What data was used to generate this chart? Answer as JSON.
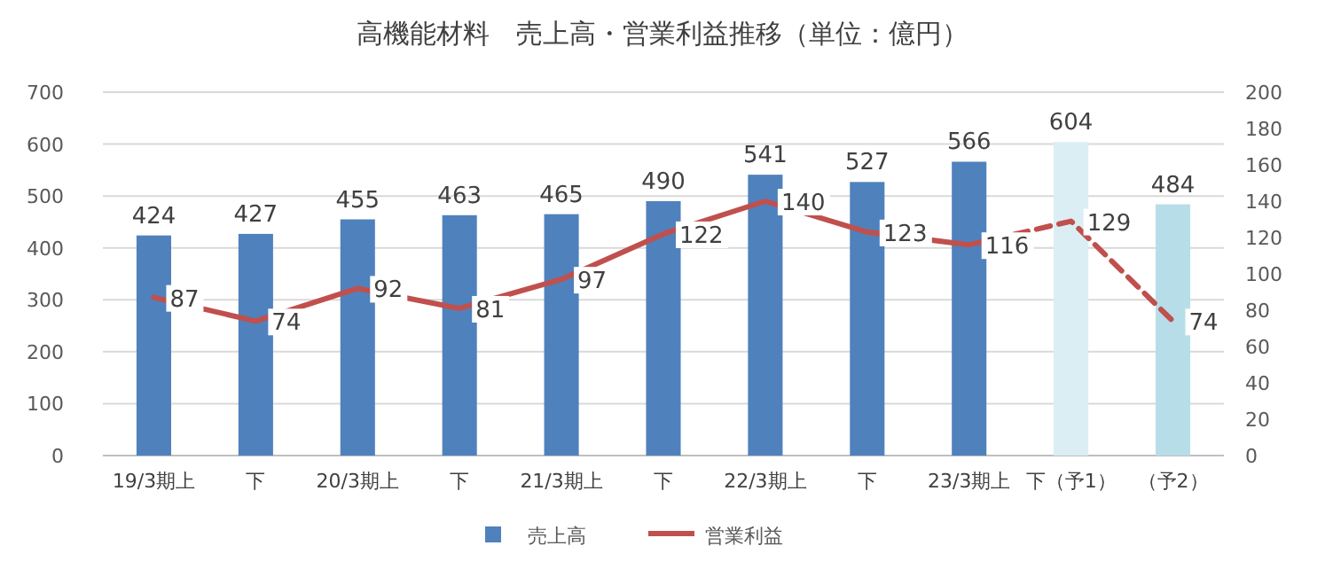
{
  "chart_data": {
    "type": "bar",
    "title": "高機能材料　売上高・営業利益推移（単位：億円）",
    "categories": [
      "19/3期上",
      "下",
      "20/3期上",
      "下",
      "21/3期上",
      "下",
      "22/3期上",
      "下",
      "23/3期上",
      "下（予1）",
      "（予2）"
    ],
    "series": [
      {
        "name": "売上高",
        "color": "#4f81bd",
        "colors": [
          "#4f81bd",
          "#4f81bd",
          "#4f81bd",
          "#4f81bd",
          "#4f81bd",
          "#4f81bd",
          "#4f81bd",
          "#4f81bd",
          "#4f81bd",
          "#dbeef4",
          "#b7dee8"
        ],
        "values": [
          424,
          427,
          455,
          463,
          465,
          490,
          541,
          527,
          566,
          604,
          484
        ],
        "value_labels": [
          "424",
          "427",
          "455",
          "463",
          "465",
          "490",
          "541",
          "527",
          "566",
          "604",
          "484"
        ]
      },
      {
        "name": "営業利益",
        "type": "line",
        "axis": "y2",
        "color": "#c0504d",
        "line_style": "solid",
        "values": [
          87,
          74,
          92,
          81,
          97,
          122,
          140,
          123,
          116,
          null,
          null
        ],
        "value_labels": [
          "87",
          "74",
          "92",
          "81",
          "97",
          "122",
          "140",
          "123",
          "116",
          null,
          null
        ]
      },
      {
        "type": "line",
        "axis": "y2",
        "color": "#c0504d",
        "line_style": "dashed",
        "values": [
          null,
          null,
          null,
          null,
          null,
          null,
          null,
          null,
          116,
          129,
          74
        ],
        "value_labels": [
          null,
          null,
          null,
          null,
          null,
          null,
          null,
          null,
          null,
          "129",
          "74"
        ]
      }
    ],
    "ylim": [
      0,
      700
    ],
    "yticks": [
      0,
      100,
      200,
      300,
      400,
      500,
      600,
      700
    ],
    "y2lim": [
      0,
      200
    ],
    "y2ticks": [
      0,
      20,
      40,
      60,
      80,
      100,
      120,
      140,
      160,
      180,
      200
    ],
    "grid": "y",
    "legend": "bottom"
  }
}
